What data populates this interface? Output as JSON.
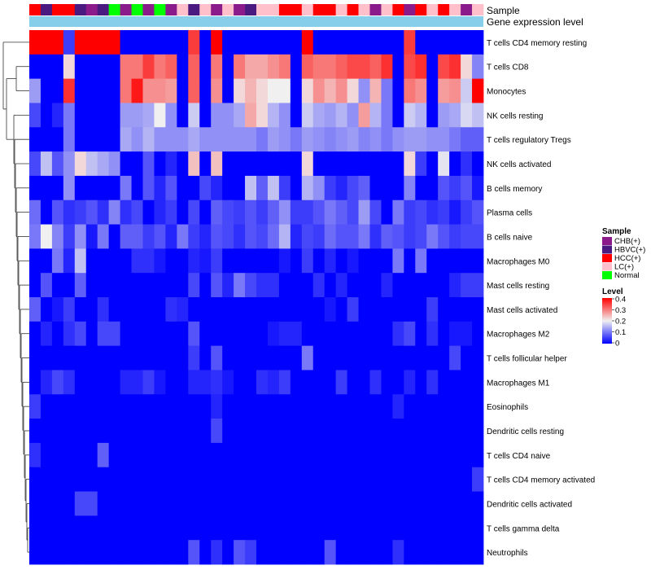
{
  "chart_data": {
    "type": "heatmap",
    "title": "",
    "annotation_tracks": [
      "Sample",
      "Gene expression level"
    ],
    "sample_groups": [
      "HCC(+)",
      "HBVC(+)",
      "HCC(+)",
      "HCC(+)",
      "HBVC(+)",
      "CHB(+)",
      "HBVC(+)",
      "Normal",
      "CHB(+)",
      "Normal",
      "CHB(+)",
      "Normal",
      "CHB(+)",
      "LC(+)",
      "HBVC(+)",
      "LC(+)",
      "CHB(+)",
      "LC(+)",
      "CHB(+)",
      "HBVC(+)",
      "LC(+)",
      "LC(+)",
      "HCC(+)",
      "HCC(+)",
      "LC(+)",
      "HCC(+)",
      "HCC(+)",
      "LC(+)",
      "HCC(+)",
      "LC(+)",
      "CHB(+)",
      "LC(+)",
      "HCC(+)",
      "CHB(+)",
      "HCC(+)",
      "LC(+)",
      "HCC(+)",
      "LC(+)",
      "CHB(+)",
      "LC(+)"
    ],
    "rows": [
      "T cells CD4 memory resting",
      "T cells CD8",
      "Monocytes",
      "NK cells resting",
      "T cells regulatory  Tregs",
      "NK cells activated",
      "B cells memory",
      "Plasma cells",
      "B cells naive",
      "Macrophages M0",
      "Mast cells resting",
      "Mast cells activated",
      "Macrophages M2",
      "T cells follicular helper",
      "Macrophages M1",
      "Eosinophils",
      "Dendritic cells resting",
      "T cells CD4 naive",
      "T cells CD4 memory activated",
      "Dendritic cells activated",
      "T cells gamma delta",
      "Neutrophils"
    ],
    "values": [
      [
        0.4,
        0.4,
        0.4,
        0.05,
        0.4,
        0.4,
        0.4,
        0.4,
        0.0,
        0.0,
        0.0,
        0.0,
        0.0,
        0.0,
        0.35,
        0.0,
        0.4,
        0.0,
        0.0,
        0.0,
        0.0,
        0.0,
        0.0,
        0.0,
        0.4,
        0.0,
        0.0,
        0.0,
        0.0,
        0.0,
        0.0,
        0.0,
        0.0,
        0.35,
        0.0,
        0.0,
        0.0,
        0.0,
        0.0,
        0.0
      ],
      [
        0.0,
        0.0,
        0.0,
        0.22,
        0.0,
        0.0,
        0.0,
        0.0,
        0.3,
        0.3,
        0.35,
        0.3,
        0.32,
        0.0,
        0.32,
        0.0,
        0.3,
        0.0,
        0.3,
        0.26,
        0.26,
        0.28,
        0.3,
        0.0,
        0.32,
        0.3,
        0.3,
        0.32,
        0.34,
        0.34,
        0.32,
        0.36,
        0.0,
        0.34,
        0.36,
        0.0,
        0.34,
        0.36,
        0.22,
        0.11
      ],
      [
        0.13,
        0.0,
        0.0,
        0.36,
        0.0,
        0.0,
        0.0,
        0.0,
        0.3,
        0.38,
        0.28,
        0.28,
        0.27,
        0.0,
        0.32,
        0.0,
        0.28,
        0.0,
        0.22,
        0.25,
        0.22,
        0.2,
        0.2,
        0.0,
        0.22,
        0.28,
        0.25,
        0.28,
        0.22,
        0.12,
        0.25,
        0.1,
        0.0,
        0.3,
        0.28,
        0.0,
        0.27,
        0.28,
        0.17,
        0.4
      ],
      [
        0.06,
        0.0,
        0.03,
        0.1,
        0.0,
        0.0,
        0.0,
        0.0,
        0.13,
        0.13,
        0.14,
        0.2,
        0.12,
        0.0,
        0.17,
        0.0,
        0.12,
        0.12,
        0.14,
        0.26,
        0.22,
        0.15,
        0.12,
        0.0,
        0.17,
        0.14,
        0.13,
        0.15,
        0.12,
        0.27,
        0.15,
        0.1,
        0.0,
        0.17,
        0.15,
        0.0,
        0.13,
        0.14,
        0.18,
        0.16
      ],
      [
        0.0,
        0.0,
        0.0,
        0.1,
        0.0,
        0.0,
        0.0,
        0.0,
        0.14,
        0.12,
        0.15,
        0.12,
        0.12,
        0.12,
        0.14,
        0.12,
        0.12,
        0.12,
        0.12,
        0.12,
        0.1,
        0.13,
        0.12,
        0.1,
        0.13,
        0.12,
        0.11,
        0.12,
        0.13,
        0.11,
        0.12,
        0.1,
        0.12,
        0.13,
        0.13,
        0.12,
        0.12,
        0.1,
        0.08,
        0.08
      ],
      [
        0.06,
        0.16,
        0.07,
        0.12,
        0.22,
        0.16,
        0.14,
        0.12,
        0.0,
        0.0,
        0.07,
        0.0,
        0.03,
        0.0,
        0.24,
        0.0,
        0.24,
        0.0,
        0.0,
        0.0,
        0.0,
        0.0,
        0.0,
        0.0,
        0.22,
        0.0,
        0.0,
        0.0,
        0.0,
        0.0,
        0.0,
        0.0,
        0.0,
        0.22,
        0.05,
        0.0,
        0.19,
        0.0,
        0.04,
        0.0
      ],
      [
        0.0,
        0.0,
        0.0,
        0.12,
        0.0,
        0.0,
        0.0,
        0.0,
        0.1,
        0.0,
        0.07,
        0.03,
        0.07,
        0.0,
        0.0,
        0.06,
        0.03,
        0.0,
        0.0,
        0.16,
        0.08,
        0.16,
        0.05,
        0.0,
        0.15,
        0.12,
        0.05,
        0.03,
        0.06,
        0.08,
        0.0,
        0.0,
        0.0,
        0.11,
        0.0,
        0.0,
        0.07,
        0.05,
        0.07,
        0.02
      ],
      [
        0.09,
        0.0,
        0.07,
        0.04,
        0.05,
        0.07,
        0.04,
        0.11,
        0.04,
        0.06,
        0.0,
        0.03,
        0.05,
        0.0,
        0.06,
        0.0,
        0.08,
        0.06,
        0.05,
        0.07,
        0.05,
        0.08,
        0.12,
        0.05,
        0.05,
        0.07,
        0.1,
        0.08,
        0.06,
        0.13,
        0.06,
        0.0,
        0.1,
        0.05,
        0.06,
        0.04,
        0.05,
        0.02,
        0.05,
        0.07
      ],
      [
        0.1,
        0.2,
        0.11,
        0.05,
        0.12,
        0.02,
        0.1,
        0.0,
        0.08,
        0.08,
        0.05,
        0.07,
        0.03,
        0.1,
        0.05,
        0.03,
        0.07,
        0.06,
        0.04,
        0.07,
        0.06,
        0.09,
        0.15,
        0.03,
        0.06,
        0.05,
        0.09,
        0.07,
        0.07,
        0.1,
        0.04,
        0.08,
        0.07,
        0.05,
        0.06,
        0.1,
        0.07,
        0.05,
        0.06,
        0.06
      ],
      [
        0.0,
        0.0,
        0.1,
        0.03,
        0.16,
        0.0,
        0.0,
        0.0,
        0.0,
        0.04,
        0.04,
        0.02,
        0.0,
        0.0,
        0.03,
        0.02,
        0.05,
        0.0,
        0.0,
        0.0,
        0.0,
        0.0,
        0.02,
        0.0,
        0.05,
        0.0,
        0.03,
        0.0,
        0.02,
        0.0,
        0.0,
        0.0,
        0.1,
        0.0,
        0.1,
        0.0,
        0.0,
        0.0,
        0.0,
        0.0
      ],
      [
        0.0,
        0.07,
        0.0,
        0.0,
        0.08,
        0.0,
        0.0,
        0.0,
        0.0,
        0.0,
        0.0,
        0.0,
        0.0,
        0.0,
        0.06,
        0.0,
        0.07,
        0.03,
        0.1,
        0.06,
        0.04,
        0.04,
        0.0,
        0.0,
        0.0,
        0.04,
        0.0,
        0.03,
        0.0,
        0.0,
        0.0,
        0.03,
        0.0,
        0.0,
        0.0,
        0.0,
        0.0,
        0.03,
        0.05,
        0.05
      ],
      [
        0.08,
        0.0,
        0.02,
        0.05,
        0.0,
        0.0,
        0.04,
        0.0,
        0.0,
        0.0,
        0.0,
        0.0,
        0.04,
        0.03,
        0.0,
        0.0,
        0.0,
        0.0,
        0.0,
        0.0,
        0.0,
        0.0,
        0.0,
        0.0,
        0.0,
        0.0,
        0.02,
        0.0,
        0.05,
        0.0,
        0.0,
        0.0,
        0.0,
        0.0,
        0.0,
        0.05,
        0.0,
        0.0,
        0.0,
        0.0
      ],
      [
        0.0,
        0.03,
        0.0,
        0.04,
        0.06,
        0.0,
        0.06,
        0.06,
        0.0,
        0.0,
        0.0,
        0.0,
        0.0,
        0.0,
        0.07,
        0.0,
        0.0,
        0.0,
        0.0,
        0.0,
        0.0,
        0.02,
        0.03,
        0.03,
        0.0,
        0.0,
        0.0,
        0.0,
        0.0,
        0.0,
        0.0,
        0.0,
        0.04,
        0.06,
        0.0,
        0.04,
        0.0,
        0.02,
        0.02,
        0.0
      ],
      [
        0.0,
        0.0,
        0.0,
        0.0,
        0.0,
        0.0,
        0.0,
        0.0,
        0.0,
        0.0,
        0.0,
        0.0,
        0.0,
        0.0,
        0.05,
        0.0,
        0.07,
        0.0,
        0.0,
        0.0,
        0.0,
        0.0,
        0.0,
        0.0,
        0.1,
        0.0,
        0.0,
        0.0,
        0.0,
        0.0,
        0.0,
        0.0,
        0.0,
        0.0,
        0.0,
        0.0,
        0.0,
        0.06,
        0.0,
        0.0
      ],
      [
        0.0,
        0.03,
        0.06,
        0.04,
        0.0,
        0.0,
        0.0,
        0.0,
        0.03,
        0.03,
        0.05,
        0.02,
        0.0,
        0.0,
        0.03,
        0.03,
        0.04,
        0.02,
        0.0,
        0.0,
        0.04,
        0.03,
        0.05,
        0.0,
        0.0,
        0.0,
        0.0,
        0.05,
        0.0,
        0.0,
        0.04,
        0.0,
        0.0,
        0.03,
        0.0,
        0.04,
        0.0,
        0.0,
        0.0,
        0.0
      ],
      [
        0.05,
        0.0,
        0.0,
        0.0,
        0.0,
        0.0,
        0.0,
        0.0,
        0.0,
        0.0,
        0.0,
        0.0,
        0.0,
        0.0,
        0.0,
        0.0,
        0.03,
        0.0,
        0.0,
        0.0,
        0.0,
        0.0,
        0.0,
        0.0,
        0.0,
        0.0,
        0.0,
        0.0,
        0.0,
        0.0,
        0.0,
        0.0,
        0.03,
        0.0,
        0.0,
        0.0,
        0.0,
        0.0,
        0.0,
        0.0
      ],
      [
        0.0,
        0.0,
        0.0,
        0.0,
        0.0,
        0.0,
        0.0,
        0.0,
        0.0,
        0.0,
        0.0,
        0.0,
        0.0,
        0.0,
        0.0,
        0.0,
        0.06,
        0.0,
        0.0,
        0.0,
        0.0,
        0.0,
        0.0,
        0.0,
        0.0,
        0.0,
        0.0,
        0.0,
        0.0,
        0.0,
        0.0,
        0.0,
        0.0,
        0.0,
        0.0,
        0.0,
        0.0,
        0.0,
        0.0,
        0.0
      ],
      [
        0.04,
        0.0,
        0.0,
        0.0,
        0.0,
        0.0,
        0.08,
        0.0,
        0.0,
        0.0,
        0.0,
        0.0,
        0.0,
        0.0,
        0.0,
        0.0,
        0.0,
        0.0,
        0.0,
        0.0,
        0.0,
        0.0,
        0.0,
        0.0,
        0.0,
        0.0,
        0.0,
        0.0,
        0.0,
        0.0,
        0.0,
        0.0,
        0.0,
        0.0,
        0.0,
        0.0,
        0.0,
        0.0,
        0.0,
        0.0
      ],
      [
        0.0,
        0.0,
        0.0,
        0.0,
        0.0,
        0.0,
        0.0,
        0.0,
        0.0,
        0.0,
        0.0,
        0.0,
        0.0,
        0.0,
        0.0,
        0.0,
        0.0,
        0.0,
        0.0,
        0.0,
        0.0,
        0.0,
        0.0,
        0.0,
        0.0,
        0.0,
        0.0,
        0.0,
        0.0,
        0.0,
        0.0,
        0.0,
        0.0,
        0.0,
        0.0,
        0.0,
        0.0,
        0.0,
        0.0,
        0.05
      ],
      [
        0.0,
        0.0,
        0.0,
        0.0,
        0.06,
        0.06,
        0.0,
        0.0,
        0.0,
        0.0,
        0.0,
        0.0,
        0.0,
        0.0,
        0.0,
        0.0,
        0.0,
        0.0,
        0.0,
        0.0,
        0.0,
        0.0,
        0.0,
        0.0,
        0.0,
        0.0,
        0.0,
        0.0,
        0.0,
        0.0,
        0.0,
        0.0,
        0.0,
        0.0,
        0.0,
        0.0,
        0.0,
        0.0,
        0.0,
        0.0
      ],
      [
        0.0,
        0.0,
        0.0,
        0.0,
        0.0,
        0.0,
        0.0,
        0.0,
        0.0,
        0.0,
        0.0,
        0.0,
        0.0,
        0.0,
        0.0,
        0.0,
        0.0,
        0.0,
        0.0,
        0.0,
        0.0,
        0.0,
        0.0,
        0.0,
        0.0,
        0.0,
        0.0,
        0.0,
        0.0,
        0.0,
        0.0,
        0.0,
        0.0,
        0.0,
        0.0,
        0.0,
        0.0,
        0.0,
        0.0,
        0.0
      ],
      [
        0.0,
        0.0,
        0.0,
        0.0,
        0.0,
        0.0,
        0.0,
        0.0,
        0.0,
        0.0,
        0.0,
        0.0,
        0.0,
        0.0,
        0.07,
        0.0,
        0.04,
        0.0,
        0.07,
        0.05,
        0.0,
        0.0,
        0.0,
        0.0,
        0.0,
        0.0,
        0.07,
        0.0,
        0.0,
        0.0,
        0.0,
        0.0,
        0.04,
        0.0,
        0.0,
        0.0,
        0.0,
        0.0,
        0.0,
        0.0
      ]
    ],
    "legend": {
      "sample_title": "Sample",
      "sample_entries": [
        {
          "label": "CHB(+)",
          "color": "#8b1a8b"
        },
        {
          "label": "HBVC(+)",
          "color": "#4b1a80"
        },
        {
          "label": "HCC(+)",
          "color": "#ff0000"
        },
        {
          "label": "LC(+)",
          "color": "#ffc0cb"
        },
        {
          "label": "Normal",
          "color": "#00ff00"
        }
      ],
      "level_title": "Level",
      "level_ticks": [
        "0.4",
        "0.3",
        "0.2",
        "0.1",
        "0"
      ],
      "level_range": [
        0,
        0.4
      ]
    },
    "colors": {
      "low": "#0000ff",
      "mid": "#f0f0f0",
      "high": "#ff0000",
      "expression_track": "#87ceeb"
    },
    "color_scale_midpoint": 0.2,
    "legend_placement": "right"
  }
}
